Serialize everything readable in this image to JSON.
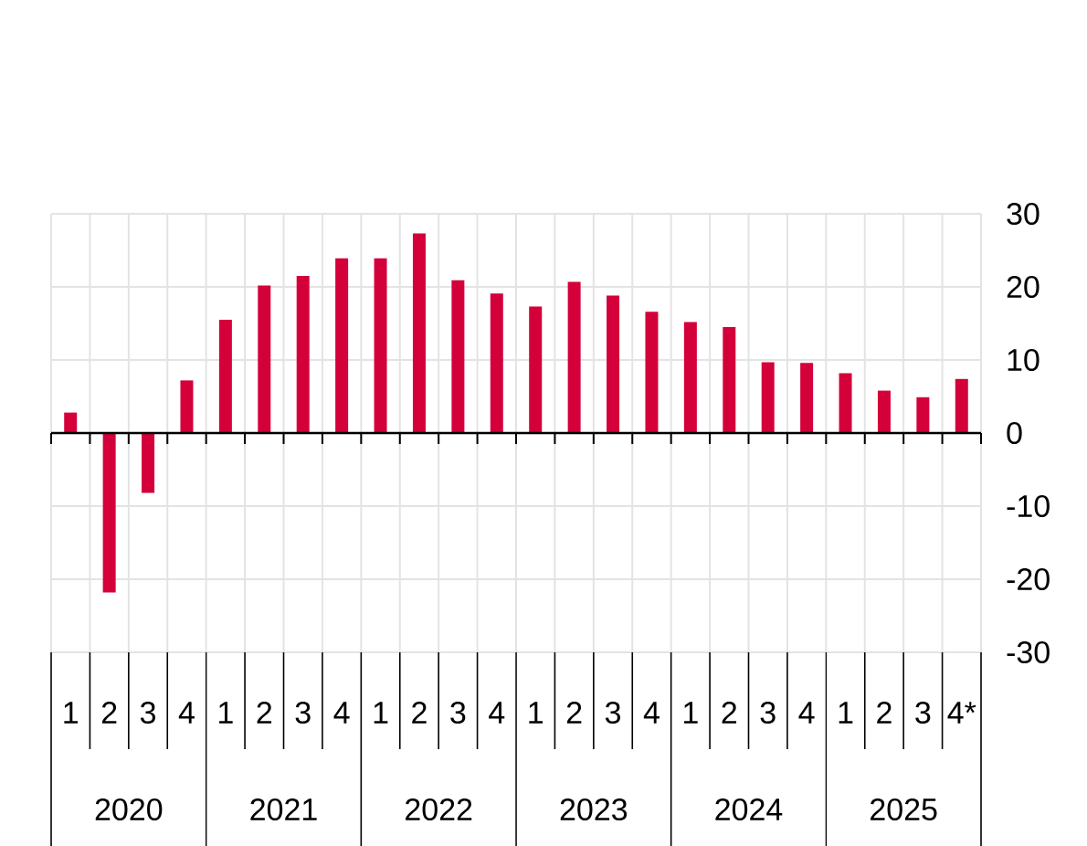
{
  "chart_data": {
    "type": "bar",
    "categories": [
      "1",
      "2",
      "3",
      "4",
      "1",
      "2",
      "3",
      "4",
      "1",
      "2",
      "3",
      "4",
      "1",
      "2",
      "3",
      "4",
      "1",
      "2",
      "3",
      "4",
      "1",
      "2",
      "3",
      "4*"
    ],
    "values": [
      2.8,
      -21.8,
      -8.2,
      7.2,
      15.5,
      20.2,
      21.5,
      23.9,
      23.9,
      27.3,
      20.9,
      19.1,
      17.3,
      20.7,
      18.8,
      16.6,
      15.2,
      14.5,
      9.7,
      9.6,
      8.2,
      5.8,
      4.9,
      7.4
    ],
    "color": "#d4003a",
    "ylim": [
      -30,
      30
    ],
    "yticks": [
      -30,
      -20,
      -10,
      0,
      10,
      20,
      30
    ],
    "grid": true,
    "ref_lines": [
      {
        "axis": "y",
        "value": 0,
        "color": "#000000"
      }
    ],
    "annotations": [
      "2020",
      "2021",
      "2022",
      "2023",
      "2024",
      "2025"
    ]
  }
}
